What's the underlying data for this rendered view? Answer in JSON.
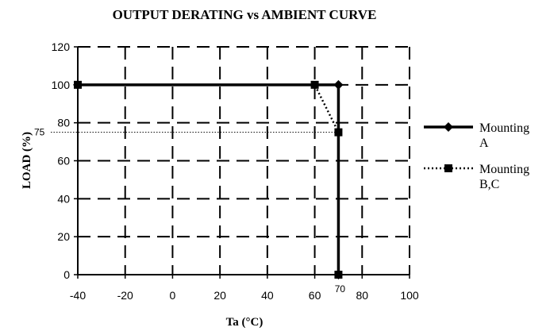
{
  "chart_data": {
    "type": "line",
    "title": "OUTPUT DERATING vs AMBIENT CURVE",
    "xlabel": "Ta (°C)",
    "ylabel": "LOAD  (%)",
    "xlim": [
      -40,
      100
    ],
    "ylim": [
      0,
      120
    ],
    "x_ticks": [
      -40,
      -20,
      0,
      20,
      40,
      60,
      80,
      100
    ],
    "x_tick_labels": [
      "-40",
      "-20",
      "0",
      "20",
      "40",
      "60",
      "80",
      "100"
    ],
    "y_ticks": [
      0,
      20,
      40,
      60,
      80,
      100,
      120
    ],
    "y_tick_labels": [
      "0",
      "20",
      "40",
      "60",
      "80",
      "100",
      "120"
    ],
    "grid": true,
    "legend_position": "right",
    "series": [
      {
        "name": "Mounting A",
        "legend_lines": [
          "Mounting",
          "A"
        ],
        "line_style": "solid",
        "marker": "diamond",
        "color": "#000000",
        "points": [
          [
            -40,
            100
          ],
          [
            70,
            100
          ],
          [
            70,
            0
          ]
        ]
      },
      {
        "name": "Mounting B,C",
        "legend_lines": [
          "Mounting",
          "B,C"
        ],
        "line_style": "dotted",
        "marker": "square",
        "color": "#000000",
        "points": [
          [
            -40,
            100
          ],
          [
            60,
            100
          ],
          [
            70,
            75
          ],
          [
            70,
            0
          ]
        ]
      }
    ],
    "annotations": [
      {
        "label": "75",
        "axis": "y",
        "value": 75,
        "guide_style": "dotted"
      },
      {
        "label": "70",
        "axis": "x",
        "value": 70
      }
    ]
  }
}
